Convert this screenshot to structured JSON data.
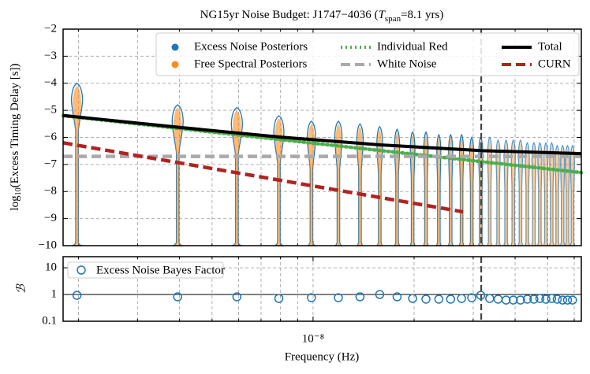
{
  "chart_data": [
    {
      "type": "violin",
      "title_parts": [
        "NG15yr Noise Budget: J1747−4036 (",
        "T",
        "span",
        "=8.1 yrs)"
      ],
      "ylabel_parts": [
        "log",
        "10",
        "(Excess Timing Delay [s])"
      ],
      "x": [
        1.98e-09,
        3.95e-09,
        5.93e-09,
        7.91e-09,
        9.89e-09,
        1.19e-08,
        1.38e-08,
        1.58e-08,
        1.78e-08,
        1.98e-08,
        2.17e-08,
        2.37e-08,
        2.57e-08,
        2.77e-08,
        2.97e-08,
        3.16e-08,
        3.36e-08,
        3.56e-08,
        3.76e-08,
        3.95e-08,
        4.15e-08,
        4.35e-08,
        4.55e-08,
        4.74e-08,
        4.94e-08,
        5.14e-08,
        5.34e-08,
        5.54e-08,
        5.73e-08,
        5.93e-08
      ],
      "xlim": [
        1.8e-09,
        6.3e-08
      ],
      "log_x": true,
      "xticks": [
        {
          "value": 1e-08,
          "label": "10⁻⁸"
        }
      ],
      "xminor": [
        2e-09,
        3e-09,
        4e-09,
        5e-09,
        6e-09,
        7e-09,
        8e-09,
        9e-09,
        2e-08,
        3e-08,
        4e-08,
        5e-08,
        6e-08
      ],
      "ylim": [
        -10,
        -2
      ],
      "yticks": [
        {
          "value": -10,
          "label": "−10"
        },
        {
          "value": -9,
          "label": "−9"
        },
        {
          "value": -8,
          "label": "−8"
        },
        {
          "value": -7,
          "label": "−7"
        },
        {
          "value": -6,
          "label": "−6"
        },
        {
          "value": -5,
          "label": "−5"
        },
        {
          "value": -4,
          "label": "−4"
        },
        {
          "value": -3,
          "label": "−3"
        },
        {
          "value": -2,
          "label": "−2"
        }
      ],
      "grid": true,
      "vline": 3.17e-08,
      "legend": "upper right",
      "series": [
        {
          "name": "Excess Noise Posteriors",
          "color": "#1f77b4",
          "values": [
            -4.6,
            -5.4,
            -5.5,
            -5.8,
            -6.0,
            -6.0,
            -6.1,
            -6.2,
            -6.3,
            -6.4,
            -6.4,
            -6.5,
            -6.5,
            -6.5,
            -6.6,
            -6.6,
            -6.6,
            -6.7,
            -6.7,
            -6.7,
            -6.7,
            -6.8,
            -6.8,
            -6.8,
            -6.8,
            -6.8,
            -6.9,
            -6.9,
            -6.9,
            -6.9
          ]
        },
        {
          "name": "Free Spectral Posteriors",
          "color": "#ff8c1a",
          "values": [
            -4.7,
            -5.5,
            -5.6,
            -5.9,
            -6.1,
            -6.1,
            -6.2,
            -6.3,
            -6.4,
            -6.5,
            -6.5,
            -6.6,
            -6.6,
            -6.6,
            -6.7,
            -6.7,
            -6.7,
            -6.8,
            -6.8,
            -6.8,
            -6.8,
            -6.9,
            -6.9,
            -6.9,
            -6.9,
            -6.9,
            -7.0,
            -7.0,
            -7.0,
            -7.0
          ]
        }
      ],
      "lines": [
        {
          "name": "Individual Red",
          "color": "#4daf4a",
          "style": "dotted",
          "x": [
            1.8e-09,
            6.3e-08
          ],
          "values": [
            -5.2,
            -7.3
          ]
        },
        {
          "name": "White Noise",
          "color": "#aaaaaa",
          "style": "dashed",
          "x": [
            1.8e-09,
            6.3e-08
          ],
          "values": [
            -6.7,
            -6.7
          ]
        },
        {
          "name": "Total",
          "color": "#000000",
          "style": "solid",
          "x": [
            1.8e-09,
            4e-09,
            8e-09,
            1.6e-08,
            3.2e-08,
            6.3e-08
          ],
          "values": [
            -5.19,
            -5.63,
            -5.99,
            -6.28,
            -6.49,
            -6.6
          ]
        },
        {
          "name": "CURN",
          "color": "#b22222",
          "style": "dashed",
          "x": [
            1.8e-09,
            2.8e-08
          ],
          "values": [
            -6.2,
            -8.75
          ]
        }
      ]
    },
    {
      "type": "scatter",
      "xlabel": "Frequency (Hz)",
      "ylabel": "ℬ",
      "ylim": [
        0.1,
        26
      ],
      "log_y": true,
      "yticks": [
        0.1,
        1,
        10
      ],
      "hline": 1,
      "legend": "upper left",
      "series": [
        {
          "name": "Excess Noise Bayes Factor",
          "color": "#1f77b4",
          "values": [
            0.93,
            0.82,
            0.82,
            0.71,
            0.76,
            0.76,
            0.82,
            1.0,
            0.82,
            0.71,
            0.67,
            0.67,
            0.67,
            0.71,
            0.76,
            0.93,
            0.71,
            0.67,
            0.62,
            0.62,
            0.62,
            0.67,
            0.67,
            0.71,
            0.67,
            0.71,
            0.67,
            0.62,
            0.62,
            0.62
          ]
        }
      ]
    }
  ]
}
